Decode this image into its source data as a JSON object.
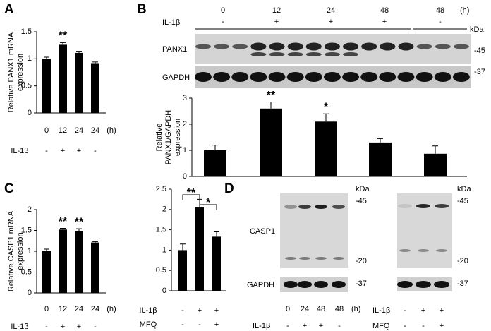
{
  "panels": [
    "A",
    "B",
    "C",
    "D"
  ],
  "chart_data": [
    {
      "type": "bar",
      "ylabel": [
        "Relative PANX1 mRNA",
        "expression"
      ],
      "categories": [
        "0",
        "12",
        "24",
        "24"
      ],
      "x_unit": "(h)",
      "conditions": [
        {
          "name": "IL-1β",
          "values": [
            "-",
            "+",
            "+",
            "-"
          ]
        }
      ],
      "values": [
        1.0,
        1.26,
        1.11,
        0.92
      ],
      "errors": [
        0.03,
        0.04,
        0.03,
        0.02
      ],
      "significance": [
        null,
        "**",
        null,
        null
      ],
      "color": "#000000",
      "ylim": [
        0,
        1.5
      ],
      "yticks": [
        0,
        0.5,
        1,
        1.5
      ]
    },
    {
      "type": "bar",
      "ylabel": [
        "Relative",
        "PANX1/GAPDH",
        "expression"
      ],
      "values": [
        1.0,
        2.6,
        2.1,
        1.3,
        0.87
      ],
      "errors": [
        0.2,
        0.25,
        0.3,
        0.15,
        0.3
      ],
      "significance": [
        null,
        "**",
        "*",
        null,
        null
      ],
      "color": "#000000",
      "ylim": [
        0,
        3
      ],
      "yticks": [
        0,
        1,
        2,
        3
      ]
    },
    {
      "type": "bar",
      "ylabel": [
        "Relative CASP1 mRNA",
        "expression"
      ],
      "categories": [
        "0",
        "12",
        "24",
        "24"
      ],
      "x_unit": "(h)",
      "conditions": [
        {
          "name": "IL-1β",
          "values": [
            "-",
            "+",
            "+",
            "-"
          ]
        }
      ],
      "values": [
        1.0,
        1.52,
        1.48,
        1.21
      ],
      "errors": [
        0.05,
        0.03,
        0.06,
        0.02
      ],
      "significance": [
        null,
        "**",
        "**",
        null
      ],
      "color": "#000000",
      "ylim": [
        0,
        2
      ],
      "yticks": [
        0,
        0.5,
        1,
        1.5,
        2
      ]
    },
    {
      "type": "bar",
      "conditions": [
        {
          "name": "IL-1β",
          "values": [
            "-",
            "+",
            "+"
          ]
        },
        {
          "name": "MFQ",
          "values": [
            "-",
            "-",
            "+"
          ]
        }
      ],
      "values": [
        1.0,
        2.05,
        1.33
      ],
      "errors": [
        0.15,
        0.2,
        0.12
      ],
      "brackets": [
        "**",
        "*"
      ],
      "color": "#000000",
      "ylim": [
        0,
        2.5
      ],
      "yticks": [
        0,
        0.5,
        1,
        1.5,
        2,
        2.5
      ]
    }
  ],
  "blot_b": {
    "times": [
      "0",
      "12",
      "24",
      "48",
      "48"
    ],
    "unit": "(h)",
    "condition": "IL-1β",
    "signs": [
      "-",
      "+",
      "+",
      "+",
      "-"
    ],
    "kda": "kDa",
    "rows": [
      {
        "name": "PANX1",
        "marker": "-45"
      },
      {
        "name": "GAPDH",
        "marker": "-37"
      }
    ]
  },
  "blot_d1": {
    "times": [
      "0",
      "24",
      "48",
      "48"
    ],
    "unit": "(h)",
    "condition": "IL-1β",
    "signs": [
      "-",
      "+",
      "+",
      "-"
    ],
    "kda": "kDa",
    "markers": [
      "-45",
      "-20",
      "-37"
    ],
    "rows": [
      "CASP1",
      "GAPDH"
    ]
  },
  "blot_d2": {
    "kda": "kDa",
    "markers": [
      "-45",
      "-20",
      "-37"
    ],
    "conditions": [
      {
        "name": "IL-1β",
        "signs": [
          "-",
          "+",
          "+"
        ]
      },
      {
        "name": "MFQ",
        "signs": [
          "-",
          "-",
          "+"
        ]
      }
    ]
  }
}
